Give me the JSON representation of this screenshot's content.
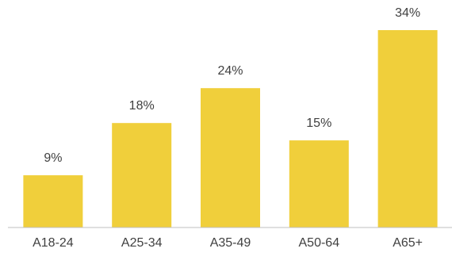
{
  "chart_data": {
    "type": "bar",
    "title": "",
    "xlabel": "",
    "ylabel": "",
    "categories": [
      "A18-24",
      "A25-34",
      "A35-49",
      "A50-64",
      "A65+"
    ],
    "values": [
      9,
      18,
      24,
      15,
      34
    ],
    "value_labels": [
      "9%",
      "18%",
      "24%",
      "15%",
      "34%"
    ],
    "ylim": [
      0,
      34
    ],
    "grid": false,
    "legend": "none",
    "bar_color": "#F0CF3B",
    "axis_color": "#BFBFBF",
    "text_color": "#404040"
  }
}
